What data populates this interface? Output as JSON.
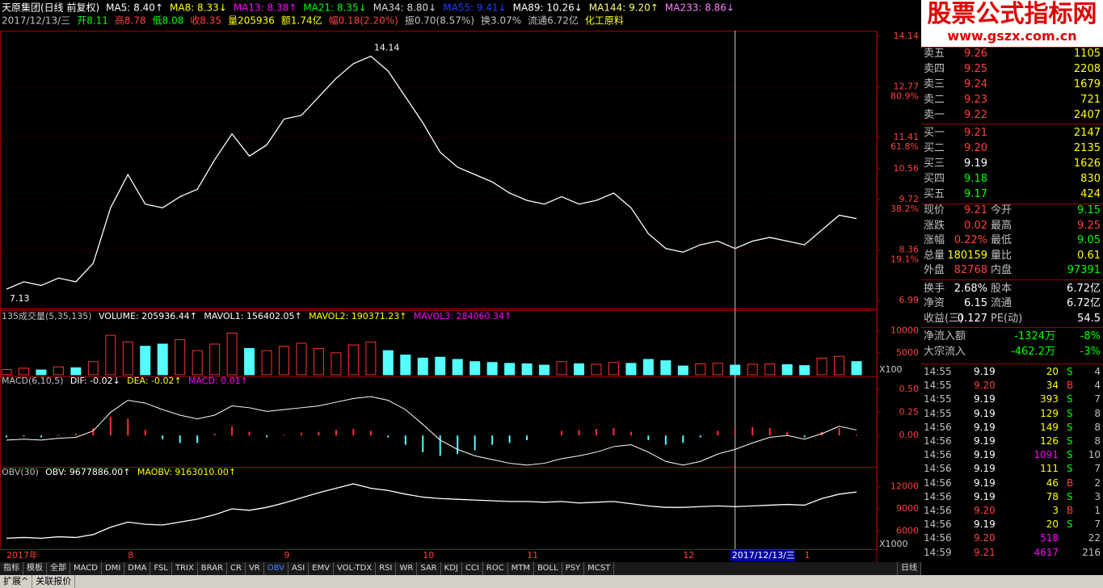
{
  "header": {
    "line1": [
      {
        "text": "天原集团(日线 前复权)",
        "color": "#ffffff"
      },
      {
        "text": "MA5: 8.40↑",
        "color": "#ffffff"
      },
      {
        "text": "MA8: 8.33↓",
        "color": "#ffff00"
      },
      {
        "text": "MA13: 8.38↑",
        "color": "#ff00ff"
      },
      {
        "text": "MA21: 8.35↓",
        "color": "#00ff00"
      },
      {
        "text": "MA34: 8.80↓",
        "color": "#dddddd"
      },
      {
        "text": "MA55: 9.41↓",
        "color": "#2040ff"
      },
      {
        "text": "MA89: 10.26↓",
        "color": "#ffffff"
      },
      {
        "text": "MA144: 9.20↑",
        "color": "#ffff80"
      },
      {
        "text": "MA233: 8.86↓",
        "color": "#ff80ff"
      }
    ],
    "line2": [
      {
        "text": "2017/12/13/三",
        "color": "#c0c0c0"
      },
      {
        "text": "开8.11",
        "color": "#00ff00"
      },
      {
        "text": "高8.78",
        "color": "#ff4040"
      },
      {
        "text": "低8.08",
        "color": "#00ff00"
      },
      {
        "text": "收8.35",
        "color": "#ff4040"
      },
      {
        "text": "量205936",
        "color": "#ffff00"
      },
      {
        "text": "额1.74亿",
        "color": "#ffff00"
      },
      {
        "text": "幅0.18(2.20%)",
        "color": "#ff4040"
      },
      {
        "text": "振0.70(8.57%)",
        "color": "#c0c0c0"
      },
      {
        "text": "换3.07%",
        "color": "#c0c0c0"
      },
      {
        "text": "流通6.72亿",
        "color": "#c0c0c0"
      },
      {
        "text": "化工原料",
        "color": "#ffff00"
      }
    ]
  },
  "logo": {
    "title": "股票公式指标网",
    "url": "www.gszx.com.cn"
  },
  "chart_data": [
    {
      "type": "line",
      "color": "#ffffff",
      "up_color": "#ff3232",
      "down_color": "#54ffff",
      "categories": [
        "2017年",
        null,
        null,
        null,
        null,
        null,
        null,
        "8",
        null,
        null,
        null,
        null,
        null,
        null,
        null,
        null,
        "9",
        null,
        null,
        null,
        null,
        null,
        null,
        null,
        "10",
        null,
        null,
        null,
        null,
        null,
        "11",
        null,
        null,
        null,
        null,
        null,
        null,
        null,
        null,
        "12",
        null,
        null,
        "2017/12/13/三",
        null,
        null,
        null,
        "1",
        null,
        null,
        null
      ],
      "cursor_category": "2017/12/13/三",
      "values": [
        7.3,
        7.5,
        7.4,
        7.6,
        7.5,
        8.0,
        9.5,
        10.4,
        9.6,
        9.5,
        9.8,
        10.0,
        10.8,
        11.5,
        10.9,
        11.2,
        11.9,
        12.0,
        12.5,
        13.0,
        13.4,
        13.6,
        13.2,
        12.5,
        11.8,
        11.0,
        10.6,
        10.4,
        10.2,
        9.9,
        9.7,
        9.6,
        9.8,
        9.6,
        9.7,
        9.9,
        9.5,
        8.8,
        8.4,
        8.3,
        8.5,
        8.6,
        8.4,
        8.6,
        8.7,
        8.6,
        8.5,
        8.9,
        9.3,
        9.21
      ],
      "ylim": [
        6.82,
        14.29
      ],
      "yticks": [
        14.14,
        12.77,
        11.41,
        10.56,
        9.72,
        8.36,
        6.99
      ],
      "fib_levels": [
        {
          "value": 12.77,
          "label": "80.9%"
        },
        {
          "value": 11.41,
          "label": "61.8%"
        },
        {
          "value": 9.72,
          "label": "38.2%"
        },
        {
          "value": 8.36,
          "label": "19.1%"
        }
      ],
      "annotations": [
        "14.14",
        "7.13"
      ]
    },
    {
      "type": "bar",
      "title": [
        {
          "text": "135成交量(5,35,135)",
          "color": "#c0c0c0"
        },
        {
          "text": "VOLUME: 205936.44↑",
          "color": "#ffffff"
        },
        {
          "text": "MAVOL1: 156402.05↑",
          "color": "#ffffff"
        },
        {
          "text": "MAVOL2: 190371.23↑",
          "color": "#ffff00"
        },
        {
          "text": "MAVOL3: 284060.34↑",
          "color": "#ff00ff"
        }
      ],
      "values": [
        1200,
        1500,
        1100,
        1800,
        1600,
        3000,
        9000,
        7500,
        6500,
        7000,
        8000,
        5500,
        7000,
        9500,
        6000,
        5500,
        6500,
        7200,
        6000,
        5000,
        6800,
        7500,
        5500,
        4500,
        3800,
        4000,
        3500,
        3000,
        2800,
        2600,
        2500,
        2200,
        3000,
        2500,
        2400,
        2800,
        2600,
        3500,
        3200,
        2000,
        2500,
        2600,
        2200,
        2400,
        2500,
        2300,
        2100,
        3800,
        4200,
        3000
      ],
      "ylim": [
        0,
        14000
      ],
      "yticks": [
        10000,
        5000
      ],
      "unit": "X100"
    },
    {
      "type": "macd",
      "title": [
        {
          "text": "MACD(6,10,5)",
          "color": "#c0c0c0"
        },
        {
          "text": "DIF: -0.02↓",
          "color": "#ffffff"
        },
        {
          "text": "DEA: -0.02↑",
          "color": "#ffff00"
        },
        {
          "text": "MACD: 0.01↑",
          "color": "#ff00ff"
        }
      ],
      "dif": [
        -0.05,
        -0.04,
        -0.05,
        -0.03,
        -0.02,
        0.05,
        0.25,
        0.38,
        0.35,
        0.28,
        0.22,
        0.18,
        0.22,
        0.32,
        0.3,
        0.26,
        0.28,
        0.3,
        0.32,
        0.36,
        0.4,
        0.42,
        0.38,
        0.28,
        0.12,
        -0.05,
        -0.15,
        -0.22,
        -0.26,
        -0.3,
        -0.32,
        -0.3,
        -0.25,
        -0.22,
        -0.18,
        -0.12,
        -0.1,
        -0.18,
        -0.28,
        -0.32,
        -0.28,
        -0.2,
        -0.15,
        -0.08,
        -0.02,
        0.0,
        -0.04,
        0.02,
        0.1,
        0.06
      ],
      "values": [
        -0.02,
        -0.01,
        -0.02,
        0.01,
        0.02,
        0.08,
        0.2,
        0.18,
        0.06,
        -0.04,
        -0.08,
        -0.08,
        0.02,
        0.1,
        0.04,
        -0.02,
        0.01,
        0.03,
        0.04,
        0.06,
        0.07,
        0.05,
        -0.02,
        -0.1,
        -0.18,
        -0.22,
        -0.2,
        -0.16,
        -0.1,
        -0.08,
        -0.05,
        0,
        0.05,
        0.06,
        0.07,
        0.08,
        0.04,
        -0.05,
        -0.1,
        -0.08,
        -0.02,
        0.05,
        0.07,
        0.09,
        0.08,
        0.04,
        -0.02,
        0.04,
        0.08,
        0.01
      ],
      "ylim": [
        -0.33,
        0.63
      ],
      "yticks": [
        {
          "value": 0.5,
          "label": "0.50"
        },
        {
          "value": 0.25,
          "label": "0.25"
        },
        {
          "value": 0,
          "label": "0.00"
        }
      ]
    },
    {
      "type": "line",
      "color": "#ffffff",
      "title": [
        {
          "text": "OBV(30)",
          "color": "#c0c0c0"
        },
        {
          "text": "OBV: 9677886.00↑",
          "color": "#ffffff"
        },
        {
          "text": "MAOBV: 9163010.00↑",
          "color": "#ffff00"
        }
      ],
      "values": [
        5000,
        5100,
        5000,
        5200,
        5100,
        5500,
        6500,
        7200,
        6900,
        6800,
        7200,
        7600,
        8200,
        9000,
        8800,
        9200,
        9800,
        10500,
        11200,
        11800,
        12400,
        11800,
        11500,
        11000,
        10600,
        10400,
        10300,
        10200,
        10100,
        10000,
        10000,
        9900,
        10000,
        9800,
        9900,
        10000,
        9700,
        9400,
        9200,
        9200,
        9300,
        9400,
        9300,
        9400,
        9500,
        9600,
        9500,
        10400,
        11000,
        11300
      ],
      "ylim": [
        3500,
        14500
      ],
      "yticks": [
        12000,
        9000,
        6000
      ],
      "unit": "X1000"
    }
  ],
  "book": [
    {
      "label": "卖五",
      "price": "9.26",
      "volume": "1105",
      "color": "#ff4040"
    },
    {
      "label": "卖四",
      "price": "9.25",
      "volume": "2208",
      "color": "#ff4040"
    },
    {
      "label": "卖三",
      "price": "9.24",
      "volume": "1679",
      "color": "#ff4040"
    },
    {
      "label": "卖二",
      "price": "9.23",
      "volume": "721",
      "color": "#ff4040"
    },
    {
      "label": "卖一",
      "price": "9.22",
      "volume": "2407",
      "color": "#ff4040"
    },
    {
      "label": "买一",
      "price": "9.21",
      "volume": "2147",
      "color": "#ff4040"
    },
    {
      "label": "买二",
      "price": "9.20",
      "volume": "2135",
      "color": "#ff4040"
    },
    {
      "label": "买三",
      "price": "9.19",
      "volume": "1626",
      "color": "#ffffff"
    },
    {
      "label": "买四",
      "price": "9.18",
      "volume": "830",
      "color": "#00ff00"
    },
    {
      "label": "买五",
      "price": "9.17",
      "volume": "424",
      "color": "#00ff00"
    }
  ],
  "stats": [
    {
      "label": "现价",
      "value": "9.21",
      "color": "#ff4040",
      "label2": "今开",
      "value2": "9.15",
      "color2": "#00ff00"
    },
    {
      "label": "涨跌",
      "value": "0.02",
      "color": "#ff4040",
      "label2": "最高",
      "value2": "9.25",
      "color2": "#ff4040"
    },
    {
      "label": "涨幅",
      "value": "0.22%",
      "color": "#ff4040",
      "label2": "最低",
      "value2": "9.05",
      "color2": "#00ff00"
    },
    {
      "label": "总量",
      "value": "180159",
      "color": "#ffff00",
      "label2": "量比",
      "value2": "0.61",
      "color2": "#ffff00"
    },
    {
      "label": "外盘",
      "value": "82768",
      "color": "#ff4040",
      "label2": "内盘",
      "value2": "97391",
      "color2": "#00ff00"
    },
    {
      "label": "换手",
      "value": "2.68%",
      "color": "#ffffff",
      "label2": "股本",
      "value2": "6.72亿",
      "color2": "#ffffff"
    },
    {
      "label": "净资",
      "value": "6.15",
      "color": "#ffffff",
      "label2": "流通",
      "value2": "6.72亿",
      "color2": "#ffffff"
    },
    {
      "label": "收益(三)",
      "value": "0.127",
      "color": "#ffffff",
      "label2": "PE(动)",
      "value2": "54.5",
      "color2": "#ffffff"
    }
  ],
  "flows": [
    {
      "label": "净流入额",
      "value": "-1324万",
      "pct": "-8%"
    },
    {
      "label": "大宗流入",
      "value": "-462.2万",
      "pct": "-3%"
    }
  ],
  "ticks": [
    {
      "time": "14:55",
      "price": "9.19",
      "volume": "20",
      "side": "S",
      "count": "4"
    },
    {
      "time": "14:55",
      "price": "9.20",
      "volume": "34",
      "side": "B",
      "count": "4"
    },
    {
      "time": "14:55",
      "price": "9.19",
      "volume": "393",
      "side": "S",
      "count": "7"
    },
    {
      "time": "14:55",
      "price": "9.19",
      "volume": "129",
      "side": "S",
      "count": "8"
    },
    {
      "time": "14:56",
      "price": "9.19",
      "volume": "149",
      "side": "S",
      "count": "8"
    },
    {
      "time": "14:56",
      "price": "9.19",
      "volume": "126",
      "side": "S",
      "count": "8"
    },
    {
      "time": "14:56",
      "price": "9.19",
      "volume": "1091",
      "side": "S",
      "count": "10"
    },
    {
      "time": "14:56",
      "price": "9.19",
      "volume": "111",
      "side": "S",
      "count": "7"
    },
    {
      "time": "14:56",
      "price": "9.19",
      "volume": "46",
      "side": "B",
      "count": "2"
    },
    {
      "time": "14:56",
      "price": "9.19",
      "volume": "78",
      "side": "S",
      "count": "3"
    },
    {
      "time": "14:56",
      "price": "9.20",
      "volume": "3",
      "side": "B",
      "count": "1"
    },
    {
      "time": "14:56",
      "price": "9.19",
      "volume": "20",
      "side": "S",
      "count": "7"
    },
    {
      "time": "14:56",
      "price": "9.20",
      "volume": "518",
      "count": "22"
    },
    {
      "time": "14:59",
      "price": "9.21",
      "volume": "4617",
      "count": "216"
    }
  ],
  "tabs": [
    "指标",
    "模板",
    "全部",
    "MACD",
    "DMI",
    "DMA",
    "FSL",
    "TRIX",
    "BRAR",
    "CR",
    "VR",
    "OBV",
    "ASI",
    "EMV",
    "VOL-TDX",
    "RSI",
    "WR",
    "SAR",
    "KDJ",
    "CCI",
    "ROC",
    "MTM",
    "BOLL",
    "PSY",
    "MCST"
  ],
  "selected_tab": "OBV",
  "period": "日线",
  "footer": [
    "扩展^",
    "关联报价"
  ]
}
